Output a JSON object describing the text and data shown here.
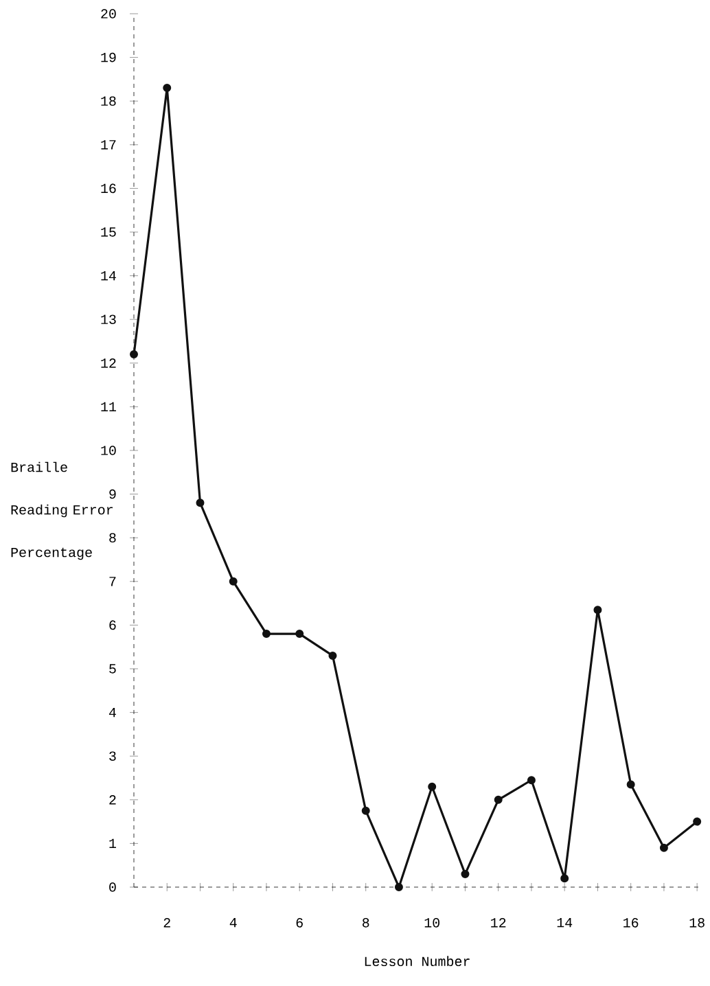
{
  "chart_data": {
    "type": "line",
    "xlabel": "Lesson Number",
    "ylabel": "Braille Reading Error Percentage",
    "x": [
      1,
      2,
      3,
      4,
      5,
      6,
      7,
      8,
      9,
      10,
      11,
      12,
      13,
      14,
      15,
      16,
      17,
      18
    ],
    "values": [
      12.2,
      18.3,
      8.8,
      7.0,
      5.8,
      5.8,
      5.3,
      1.75,
      0,
      2.3,
      0.3,
      2.0,
      2.45,
      0.2,
      6.35,
      2.35,
      0.9,
      1.5
    ],
    "color": "#111111",
    "marker": "circle",
    "line_style": "solid",
    "xlim": [
      1,
      18.1
    ],
    "ylim": [
      0,
      20
    ],
    "xticks": [
      2,
      {
        "value": 3,
        "label": null
      },
      4,
      {
        "value": 5,
        "label": null
      },
      6,
      {
        "value": 7,
        "label": null
      },
      8,
      {
        "value": 9,
        "label": null
      },
      10,
      {
        "value": 11,
        "label": null
      },
      12,
      {
        "value": 13,
        "label": null
      },
      14,
      {
        "value": 15,
        "label": null
      },
      16,
      {
        "value": 17,
        "label": null
      },
      18
    ],
    "yticks": [
      0,
      1,
      2,
      3,
      4,
      5,
      6,
      7,
      8,
      9,
      10,
      11,
      12,
      13,
      14,
      15,
      16,
      17,
      18,
      19,
      20
    ]
  }
}
